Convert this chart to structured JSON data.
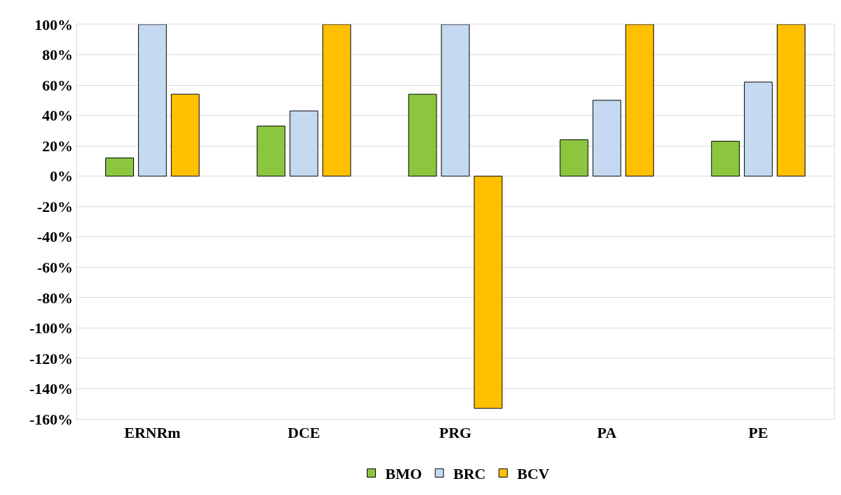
{
  "chart_data": {
    "type": "bar",
    "categories": [
      "ERNRm",
      "DCE",
      "PRG",
      "PA",
      "PE"
    ],
    "series": [
      {
        "name": "BMO",
        "color": "#8cc63f",
        "values": [
          12,
          33,
          54,
          24,
          23
        ]
      },
      {
        "name": "BRC",
        "color": "#c5d9f1",
        "values": [
          100,
          43,
          100,
          50,
          62
        ]
      },
      {
        "name": "BCV",
        "color": "#ffc000",
        "values": [
          54,
          100,
          -153,
          100,
          100
        ]
      }
    ],
    "ylim": [
      -160,
      100
    ],
    "yticks": [
      {
        "value": -160,
        "label": "-160%"
      },
      {
        "value": -140,
        "label": "-140%"
      },
      {
        "value": -120,
        "label": "-120%"
      },
      {
        "value": -100,
        "label": "-100%"
      },
      {
        "value": -80,
        "label": "-80%"
      },
      {
        "value": -60,
        "label": "-60%"
      },
      {
        "value": -40,
        "label": "-40%"
      },
      {
        "value": -20,
        "label": "-20%"
      },
      {
        "value": 0,
        "label": "0%"
      },
      {
        "value": 20,
        "label": "20%"
      },
      {
        "value": 40,
        "label": "40%"
      },
      {
        "value": 60,
        "label": "60%"
      },
      {
        "value": 80,
        "label": "80%"
      },
      {
        "value": 100,
        "label": "100%"
      }
    ],
    "grid": "y",
    "legend": "bottom"
  }
}
